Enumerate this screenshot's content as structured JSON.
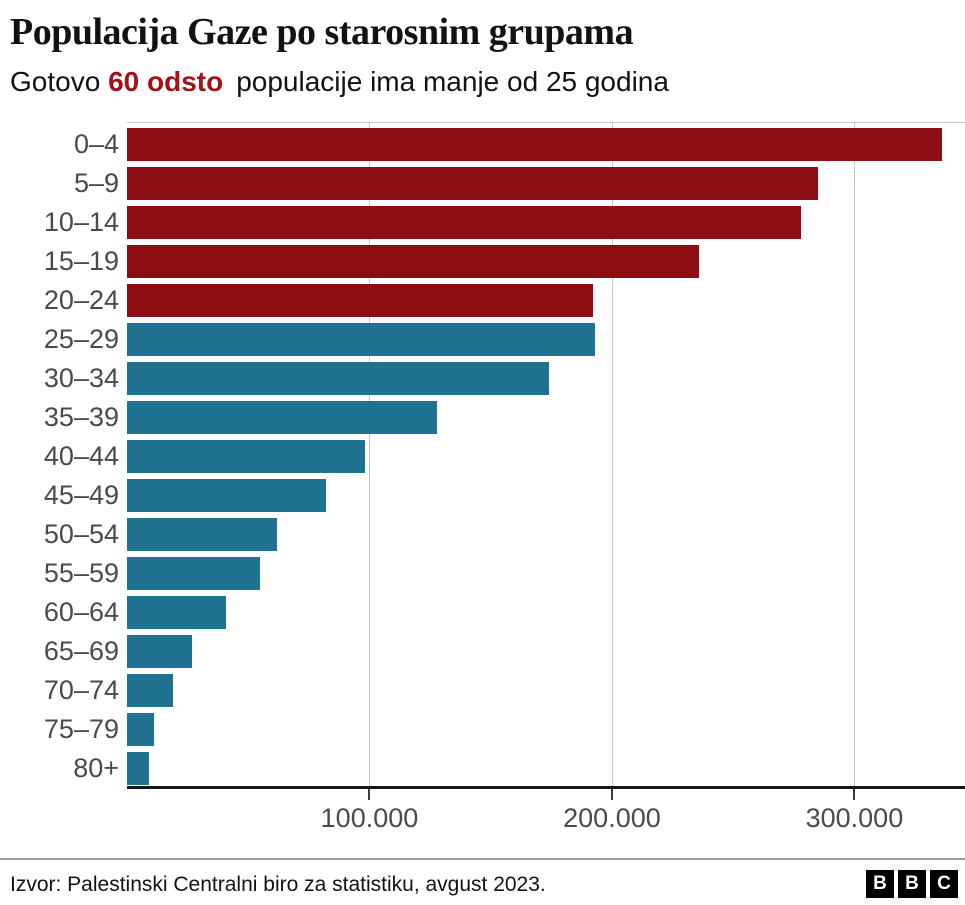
{
  "header": {
    "title": "Populacija Gaze po starosnim grupama",
    "subtitle_prefix": "Gotovo",
    "subtitle_highlight": "60 odsto",
    "subtitle_rest": "populacije ima manje od 25 godina"
  },
  "chart_data": {
    "type": "bar",
    "orientation": "horizontal",
    "title": "Populacija Gaze po starosnim grupama",
    "subtitle": "Gotovo 60 odsto populacije ima manje od 25 godina",
    "categories": [
      "0–4",
      "5–9",
      "10–14",
      "15–19",
      "20–24",
      "25–29",
      "30–34",
      "35–39",
      "40–44",
      "45–49",
      "50–54",
      "55–59",
      "60–64",
      "65–69",
      "70–74",
      "75–79",
      "80+"
    ],
    "values": [
      336000,
      285000,
      278000,
      236000,
      192000,
      193000,
      174000,
      128000,
      98000,
      82000,
      62000,
      55000,
      41000,
      27000,
      19000,
      11000,
      9000
    ],
    "highlight_count": 5,
    "highlight_meaning": "age groups under 25",
    "colors": {
      "under_25": "#8e0c13",
      "over_25": "#1f7290"
    },
    "x_axis": {
      "ticks": [
        100000,
        200000,
        300000
      ],
      "tick_labels": [
        "100.000",
        "200.000",
        "300.000"
      ],
      "min": 0,
      "max": 345600
    },
    "grid": true,
    "legend": false
  },
  "footer": {
    "source": "Izvor: Palestinski Centralni biro za statistiku, avgust 2023.",
    "logo_letters": [
      "B",
      "B",
      "C"
    ]
  }
}
